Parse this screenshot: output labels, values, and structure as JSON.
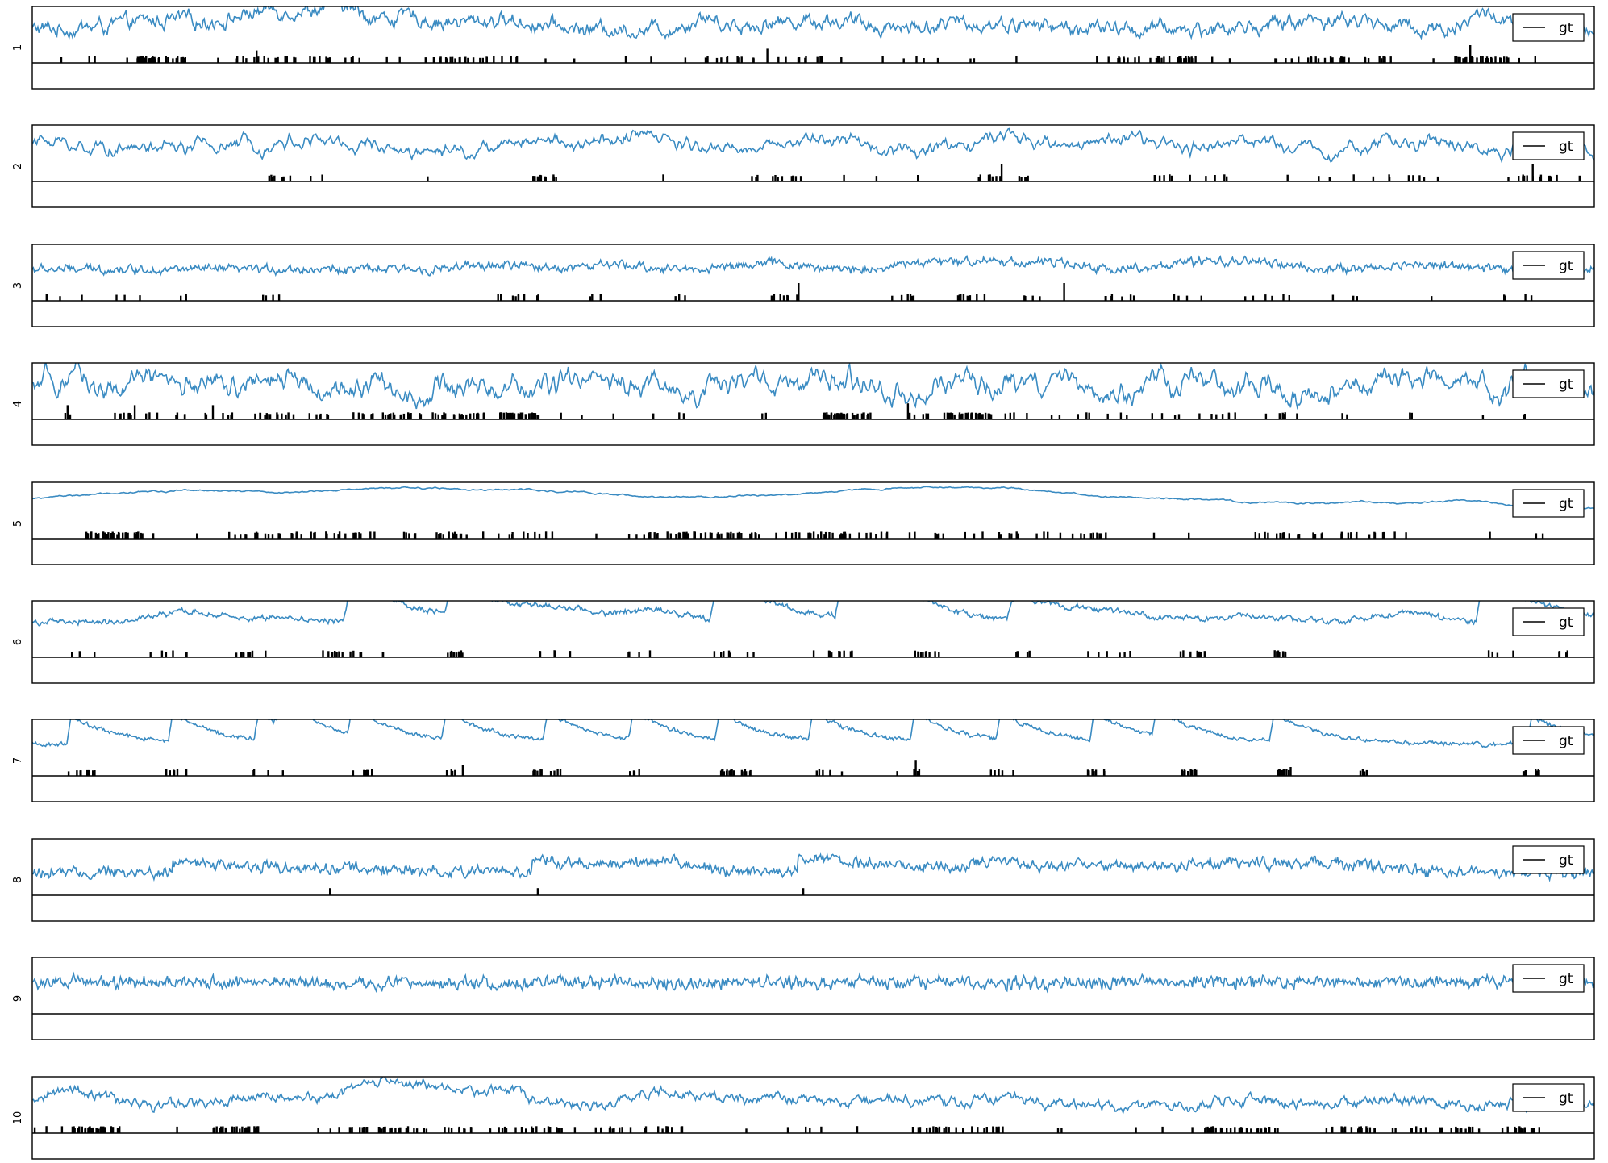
{
  "figure": {
    "background": "#ffffff",
    "line_color": "#3a8bc2",
    "event_color": "#000000",
    "frame_color": "#000000"
  },
  "chart_data": [
    {
      "type": "line",
      "ylabel": "1",
      "legend": {
        "label": "gt",
        "placement": "top-right"
      },
      "grid": false,
      "series": [
        {
          "name": "gt",
          "color": "#3a8bc2",
          "profile": {
            "base": 0.62,
            "noise": 0.1,
            "freq": 0.5,
            "bumps": [
              [
                0.09,
                0.17,
                0.03
              ],
              [
                0.155,
                0.35,
                0.02
              ],
              [
                0.195,
                0.4,
                0.015
              ],
              [
                0.24,
                0.22,
                0.02
              ],
              [
                0.3,
                0.18,
                0.02
              ],
              [
                0.43,
                0.22,
                0.01
              ],
              [
                0.5,
                0.18,
                0.03
              ],
              [
                0.61,
                0.12,
                0.03
              ],
              [
                0.83,
                0.2,
                0.03
              ],
              [
                0.93,
                0.3,
                0.01
              ]
            ]
          }
        }
      ],
      "events": {
        "density": 0.32,
        "clusters": [
          [
            0.08,
            0.04
          ],
          [
            0.16,
            0.06
          ],
          [
            0.28,
            0.06
          ],
          [
            0.47,
            0.08
          ],
          [
            0.72,
            0.05
          ],
          [
            0.84,
            0.06
          ],
          [
            0.93,
            0.04
          ]
        ],
        "tall": [
          [
            0.143,
            0.7
          ],
          [
            0.47,
            0.8
          ],
          [
            0.92,
            1.0
          ]
        ],
        "count": 220
      }
    },
    {
      "type": "line",
      "ylabel": "2",
      "legend": {
        "label": "gt",
        "placement": "top-right"
      },
      "grid": false,
      "series": [
        {
          "name": "gt",
          "color": "#3a8bc2",
          "profile": {
            "base": 0.62,
            "noise": 0.07,
            "freq": 0.25,
            "bumps": [
              [
                0.01,
                0.15,
                0.01
              ],
              [
                0.17,
                0.15,
                0.03
              ],
              [
                0.33,
                0.18,
                0.015
              ],
              [
                0.39,
                0.22,
                0.015
              ],
              [
                0.5,
                0.17,
                0.02
              ],
              [
                0.62,
                0.16,
                0.02
              ],
              [
                0.69,
                0.15,
                0.02
              ],
              [
                0.78,
                0.12,
                0.02
              ],
              [
                0.88,
                0.13,
                0.02
              ]
            ]
          }
        }
      ],
      "events": {
        "density": 0.05,
        "clusters": [
          [
            0.17,
            0.04
          ],
          [
            0.33,
            0.03
          ],
          [
            0.48,
            0.04
          ],
          [
            0.62,
            0.04
          ],
          [
            0.74,
            0.05
          ],
          [
            0.86,
            0.08
          ],
          [
            0.96,
            0.04
          ]
        ],
        "tall": [
          [
            0.96,
            1.0
          ],
          [
            0.62,
            1.0
          ]
        ],
        "count": 90
      }
    },
    {
      "type": "line",
      "ylabel": "3",
      "legend": {
        "label": "gt",
        "placement": "top-right"
      },
      "grid": false,
      "series": [
        {
          "name": "gt",
          "color": "#3a8bc2",
          "profile": {
            "base": 0.58,
            "noise": 0.06,
            "freq": 0.9,
            "bumps": [
              [
                0.3,
                0.08,
                0.02
              ],
              [
                0.37,
                0.08,
                0.02
              ],
              [
                0.47,
                0.12,
                0.02
              ],
              [
                0.57,
                0.14,
                0.015
              ],
              [
                0.61,
                0.18,
                0.015
              ],
              [
                0.65,
                0.14,
                0.015
              ],
              [
                0.74,
                0.1,
                0.02
              ],
              [
                0.78,
                0.14,
                0.02
              ],
              [
                0.89,
                0.1,
                0.02
              ]
            ]
          }
        }
      ],
      "events": {
        "density": 0.0,
        "clusters": [
          [
            0.02,
            0.03
          ],
          [
            0.06,
            0.02
          ],
          [
            0.1,
            0.02
          ],
          [
            0.15,
            0.02
          ],
          [
            0.31,
            0.03
          ],
          [
            0.36,
            0.02
          ],
          [
            0.42,
            0.02
          ],
          [
            0.48,
            0.02
          ],
          [
            0.56,
            0.03
          ],
          [
            0.6,
            0.02
          ],
          [
            0.64,
            0.03
          ],
          [
            0.69,
            0.03
          ],
          [
            0.74,
            0.02
          ],
          [
            0.79,
            0.03
          ],
          [
            0.84,
            0.02
          ],
          [
            0.89,
            0.02
          ],
          [
            0.95,
            0.02
          ]
        ],
        "tall": [
          [
            0.49,
            1.0
          ],
          [
            0.66,
            1.0
          ]
        ],
        "count": 80
      }
    },
    {
      "type": "line",
      "ylabel": "4",
      "legend": {
        "label": "gt",
        "placement": "top-right"
      },
      "grid": false,
      "series": [
        {
          "name": "gt",
          "color": "#3a8bc2",
          "profile": {
            "base": 0.6,
            "noise": 0.12,
            "freq": 0.18,
            "bumps": []
          }
        }
      ],
      "events": {
        "density": 0.1,
        "clusters": [
          [
            0.12,
            0.15
          ],
          [
            0.25,
            0.08
          ],
          [
            0.31,
            0.03
          ],
          [
            0.52,
            0.03
          ],
          [
            0.6,
            0.03
          ],
          [
            0.7,
            0.3
          ]
        ],
        "tall": [
          [
            0.022,
            0.8
          ],
          [
            0.065,
            0.8
          ],
          [
            0.115,
            0.8
          ],
          [
            0.56,
            0.9
          ]
        ],
        "count": 260
      }
    },
    {
      "type": "line",
      "ylabel": "5",
      "legend": {
        "label": "gt",
        "placement": "top-right"
      },
      "grid": false,
      "series": [
        {
          "name": "gt",
          "color": "#3a8bc2",
          "profile": {
            "base": 0.56,
            "noise": 0.008,
            "freq": 0.0,
            "smooth": true,
            "bumps": [
              [
                0.04,
                0.14,
                0.08
              ],
              [
                0.19,
                0.18,
                0.1
              ],
              [
                0.3,
                0.15,
                0.08
              ],
              [
                0.45,
                -0.05,
                0.06
              ],
              [
                0.52,
                0.2,
                0.08
              ],
              [
                0.62,
                0.22,
                0.07
              ],
              [
                0.73,
                0.18,
                0.06
              ],
              [
                0.87,
                0.12,
                0.06
              ]
            ]
          }
        }
      ],
      "events": {
        "density": 0.05,
        "clusters": [
          [
            0.05,
            0.04
          ],
          [
            0.17,
            0.1
          ],
          [
            0.28,
            0.1
          ],
          [
            0.42,
            0.08
          ],
          [
            0.48,
            0.12
          ],
          [
            0.6,
            0.18
          ],
          [
            0.83,
            0.12
          ]
        ],
        "tall": [],
        "count": 240
      }
    },
    {
      "type": "line",
      "ylabel": "6",
      "legend": {
        "label": "gt",
        "placement": "top-right"
      },
      "grid": false,
      "series": [
        {
          "name": "gt",
          "color": "#3a8bc2",
          "profile": {
            "base": 0.65,
            "noise": 0.04,
            "freq": 0.8,
            "spikes": [
              [
                0.205,
                0.95
              ],
              [
                0.27,
                0.75
              ],
              [
                0.44,
                1.0
              ],
              [
                0.52,
                1.0
              ],
              [
                0.63,
                0.55
              ],
              [
                0.93,
                1.0
              ]
            ],
            "bumps": [
              [
                0.1,
                0.2,
                0.02
              ],
              [
                0.16,
                0.1,
                0.015
              ],
              [
                0.34,
                0.18,
                0.02
              ],
              [
                0.4,
                0.22,
                0.02
              ],
              [
                0.56,
                0.2,
                0.02
              ],
              [
                0.69,
                0.15,
                0.02
              ],
              [
                0.78,
                0.12,
                0.02
              ],
              [
                0.88,
                0.18,
                0.02
              ]
            ]
          }
        }
      ],
      "events": {
        "density": 0.0,
        "clusters": [
          [
            0.03,
            0.02
          ],
          [
            0.09,
            0.03
          ],
          [
            0.14,
            0.02
          ],
          [
            0.19,
            0.02
          ],
          [
            0.21,
            0.03
          ],
          [
            0.27,
            0.02
          ],
          [
            0.33,
            0.03
          ],
          [
            0.39,
            0.02
          ],
          [
            0.45,
            0.03
          ],
          [
            0.51,
            0.03
          ],
          [
            0.57,
            0.02
          ],
          [
            0.63,
            0.02
          ],
          [
            0.69,
            0.03
          ],
          [
            0.74,
            0.02
          ],
          [
            0.8,
            0.02
          ],
          [
            0.94,
            0.02
          ],
          [
            0.98,
            0.02
          ]
        ],
        "tall": [],
        "count": 110
      }
    },
    {
      "type": "line",
      "ylabel": "7",
      "legend": {
        "label": "gt",
        "placement": "top-right"
      },
      "grid": false,
      "series": [
        {
          "name": "gt",
          "color": "#3a8bc2",
          "profile": {
            "base": 0.58,
            "noise": 0.03,
            "freq": 0.9,
            "decays": [
              0.025,
              0.09,
              0.145,
              0.16,
              0.205,
              0.265,
              0.33,
              0.385,
              0.44,
              0.5,
              0.565,
              0.62,
              0.68,
              0.72,
              0.795,
              0.96
            ],
            "bumps": []
          }
        }
      ],
      "events": {
        "density": 0.0,
        "clusters": [
          [
            0.03,
            0.02
          ],
          [
            0.09,
            0.02
          ],
          [
            0.15,
            0.02
          ],
          [
            0.21,
            0.02
          ],
          [
            0.27,
            0.015
          ],
          [
            0.33,
            0.02
          ],
          [
            0.39,
            0.02
          ],
          [
            0.45,
            0.02
          ],
          [
            0.51,
            0.02
          ],
          [
            0.56,
            0.02
          ],
          [
            0.62,
            0.015
          ],
          [
            0.68,
            0.015
          ],
          [
            0.74,
            0.01
          ],
          [
            0.8,
            0.01
          ],
          [
            0.85,
            0.01
          ],
          [
            0.96,
            0.015
          ]
        ],
        "tall": [
          [
            0.275,
            0.6
          ],
          [
            0.565,
            0.9
          ],
          [
            0.805,
            0.5
          ]
        ],
        "count": 120
      }
    },
    {
      "type": "line",
      "ylabel": "8",
      "legend": {
        "label": "gt",
        "placement": "top-right"
      },
      "grid": false,
      "series": [
        {
          "name": "gt",
          "color": "#3a8bc2",
          "profile": {
            "base": 0.4,
            "noise": 0.08,
            "freq": 1.0,
            "steps": [
              [
                0.0,
                0.12,
                0.0
              ],
              [
                0.09,
                0.22,
                0.06
              ],
              [
                0.19,
                0.0,
                0.08
              ],
              [
                0.32,
                0.24,
                0.02
              ],
              [
                0.49,
                0.28,
                0.04
              ],
              [
                0.6,
                0.16,
                0.08
              ]
            ],
            "bumps": [
              [
                0.4,
                0.12,
                0.02
              ],
              [
                0.77,
                0.12,
                0.03
              ],
              [
                0.83,
                0.15,
                0.03
              ]
            ]
          }
        }
      ],
      "events": {
        "density": 0.0,
        "clusters": [],
        "tall": [
          [
            0.19,
            0.4
          ],
          [
            0.323,
            0.4
          ],
          [
            0.493,
            0.4
          ]
        ],
        "count": 0
      }
    },
    {
      "type": "line",
      "ylabel": "9",
      "legend": {
        "label": "gt",
        "placement": "top-right"
      },
      "grid": false,
      "series": [
        {
          "name": "gt",
          "color": "#3a8bc2",
          "profile": {
            "base": 0.57,
            "noise": 0.09,
            "freq": 1.0,
            "bumps": []
          }
        }
      ],
      "events": {
        "density": 0.0,
        "clusters": [],
        "tall": [],
        "count": 0
      }
    },
    {
      "type": "line",
      "ylabel": "10",
      "legend": {
        "label": "gt",
        "placement": "top-right"
      },
      "grid": false,
      "series": [
        {
          "name": "gt",
          "color": "#3a8bc2",
          "profile": {
            "base": 0.5,
            "noise": 0.07,
            "freq": 0.5,
            "bumps": [
              [
                0.015,
                0.25,
                0.015
              ],
              [
                0.04,
                0.15,
                0.015
              ],
              [
                0.14,
                0.18,
                0.02
              ],
              [
                0.22,
                0.32,
                0.025
              ],
              [
                0.25,
                0.28,
                0.02
              ],
              [
                0.3,
                0.26,
                0.02
              ],
              [
                0.41,
                0.3,
                0.025
              ],
              [
                0.48,
                0.15,
                0.02
              ],
              [
                0.55,
                0.12,
                0.02
              ],
              [
                0.62,
                0.15,
                0.02
              ],
              [
                0.78,
                0.1,
                0.02
              ],
              [
                0.87,
                0.15,
                0.02
              ],
              [
                0.97,
                0.1,
                0.02
              ]
            ]
          }
        }
      ],
      "events": {
        "density": 0.18,
        "clusters": [
          [
            0.04,
            0.03
          ],
          [
            0.13,
            0.03
          ],
          [
            0.22,
            0.06
          ],
          [
            0.3,
            0.08
          ],
          [
            0.39,
            0.06
          ],
          [
            0.59,
            0.06
          ],
          [
            0.77,
            0.04
          ],
          [
            0.86,
            0.06
          ],
          [
            0.93,
            0.06
          ]
        ],
        "tall": [],
        "count": 260
      }
    }
  ]
}
